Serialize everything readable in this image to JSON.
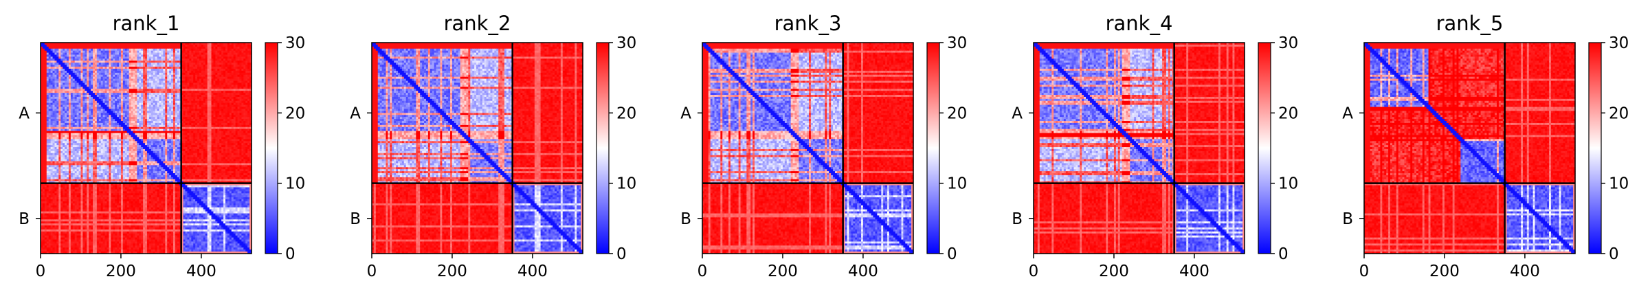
{
  "chart_data": [
    {
      "type": "heatmap",
      "title": "rank_1",
      "x_ticks": [
        "0",
        "200",
        "400"
      ],
      "x_tick_values": [
        0,
        200,
        400
      ],
      "y_ticks": [
        "A",
        "B"
      ],
      "chains": [
        {
          "name": "A",
          "start": 0,
          "end": 350
        },
        {
          "name": "B",
          "start": 350,
          "end": 525
        }
      ],
      "xlim": [
        0,
        525
      ],
      "ylim": [
        0,
        525
      ],
      "colorbar": {
        "min": 0,
        "max": 30,
        "ticks": [
          "0",
          "10",
          "20",
          "30"
        ],
        "colormap": "bwr"
      },
      "colors": {
        "low": "#0000ff",
        "mid": "#ffffff",
        "high": "#ff0000"
      },
      "pattern_profile": "low_intra_A_dense"
    },
    {
      "type": "heatmap",
      "title": "rank_2",
      "x_ticks": [
        "0",
        "200",
        "400"
      ],
      "x_tick_values": [
        0,
        200,
        400
      ],
      "y_ticks": [
        "A",
        "B"
      ],
      "chains": [
        {
          "name": "A",
          "start": 0,
          "end": 350
        },
        {
          "name": "B",
          "start": 350,
          "end": 525
        }
      ],
      "xlim": [
        0,
        525
      ],
      "ylim": [
        0,
        525
      ],
      "colorbar": {
        "min": 0,
        "max": 30,
        "ticks": [
          "0",
          "10",
          "20",
          "30"
        ],
        "colormap": "bwr"
      },
      "colors": {
        "low": "#0000ff",
        "mid": "#ffffff",
        "high": "#ff0000"
      },
      "pattern_profile": "low_intra_A_dense"
    },
    {
      "type": "heatmap",
      "title": "rank_3",
      "x_ticks": [
        "0",
        "200",
        "400"
      ],
      "x_tick_values": [
        0,
        200,
        400
      ],
      "y_ticks": [
        "A",
        "B"
      ],
      "chains": [
        {
          "name": "A",
          "start": 0,
          "end": 350
        },
        {
          "name": "B",
          "start": 350,
          "end": 525
        }
      ],
      "xlim": [
        0,
        525
      ],
      "ylim": [
        0,
        525
      ],
      "colorbar": {
        "min": 0,
        "max": 30,
        "ticks": [
          "0",
          "10",
          "20",
          "30"
        ],
        "colormap": "bwr"
      },
      "colors": {
        "low": "#0000ff",
        "mid": "#ffffff",
        "high": "#ff0000"
      },
      "pattern_profile": "low_intra_A_dense"
    },
    {
      "type": "heatmap",
      "title": "rank_4",
      "x_ticks": [
        "0",
        "200",
        "400"
      ],
      "x_tick_values": [
        0,
        200,
        400
      ],
      "y_ticks": [
        "A",
        "B"
      ],
      "chains": [
        {
          "name": "A",
          "start": 0,
          "end": 350
        },
        {
          "name": "B",
          "start": 350,
          "end": 525
        }
      ],
      "xlim": [
        0,
        525
      ],
      "ylim": [
        0,
        525
      ],
      "colorbar": {
        "min": 0,
        "max": 30,
        "ticks": [
          "0",
          "10",
          "20",
          "30"
        ],
        "colormap": "bwr"
      },
      "colors": {
        "low": "#0000ff",
        "mid": "#ffffff",
        "high": "#ff0000"
      },
      "pattern_profile": "low_intra_A_dense"
    },
    {
      "type": "heatmap",
      "title": "rank_5",
      "x_ticks": [
        "0",
        "200",
        "400"
      ],
      "x_tick_values": [
        0,
        200,
        400
      ],
      "y_ticks": [
        "A",
        "B"
      ],
      "chains": [
        {
          "name": "A",
          "start": 0,
          "end": 350
        },
        {
          "name": "B",
          "start": 350,
          "end": 525
        }
      ],
      "xlim": [
        0,
        525
      ],
      "ylim": [
        0,
        525
      ],
      "colorbar": {
        "min": 0,
        "max": 30,
        "ticks": [
          "0",
          "10",
          "20",
          "30"
        ],
        "colormap": "bwr"
      },
      "colors": {
        "low": "#0000ff",
        "mid": "#ffffff",
        "high": "#ff0000"
      },
      "pattern_profile": "low_intra_A_sparse"
    }
  ]
}
